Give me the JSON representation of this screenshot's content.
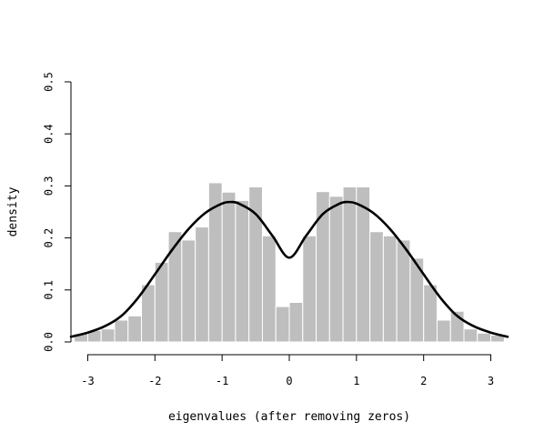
{
  "chart_data": {
    "type": "bar",
    "subtype": "histogram-with-density",
    "title": "",
    "xlabel": "eigenvalues (after removing zeros)",
    "ylabel": "density",
    "xlim": [
      -3.25,
      3.25
    ],
    "ylim": [
      0,
      0.5
    ],
    "x_ticks": [
      -3,
      -2,
      -1,
      0,
      1,
      2,
      3
    ],
    "x_tick_labels": [
      "-3",
      "-2",
      "-1",
      "0",
      "1",
      "2",
      "3"
    ],
    "y_ticks": [
      0,
      0.1,
      0.2,
      0.3,
      0.4,
      0.5
    ],
    "y_tick_labels": [
      "0.0",
      "0.1",
      "0.2",
      "0.3",
      "0.4",
      "0.5"
    ],
    "grid": false,
    "bar_color": "#bebebe",
    "curve_color": "#000000",
    "bins": [
      {
        "x0": -3.2,
        "x1": -3.0,
        "density": 0.016
      },
      {
        "x0": -3.0,
        "x1": -2.8,
        "density": 0.022
      },
      {
        "x0": -2.8,
        "x1": -2.6,
        "density": 0.025
      },
      {
        "x0": -2.6,
        "x1": -2.4,
        "density": 0.042
      },
      {
        "x0": -2.4,
        "x1": -2.2,
        "density": 0.05
      },
      {
        "x0": -2.2,
        "x1": -2.0,
        "density": 0.11
      },
      {
        "x0": -2.0,
        "x1": -1.8,
        "density": 0.153
      },
      {
        "x0": -1.8,
        "x1": -1.6,
        "density": 0.212
      },
      {
        "x0": -1.6,
        "x1": -1.4,
        "density": 0.196
      },
      {
        "x0": -1.4,
        "x1": -1.2,
        "density": 0.221
      },
      {
        "x0": -1.2,
        "x1": -1.0,
        "density": 0.306
      },
      {
        "x0": -1.0,
        "x1": -0.8,
        "density": 0.288
      },
      {
        "x0": -0.8,
        "x1": -0.6,
        "density": 0.272
      },
      {
        "x0": -0.6,
        "x1": -0.4,
        "density": 0.298
      },
      {
        "x0": -0.4,
        "x1": -0.2,
        "density": 0.204
      },
      {
        "x0": -0.2,
        "x1": 0.0,
        "density": 0.068
      },
      {
        "x0": 0.0,
        "x1": 0.2,
        "density": 0.076
      },
      {
        "x0": 0.2,
        "x1": 0.4,
        "density": 0.204
      },
      {
        "x0": 0.4,
        "x1": 0.6,
        "density": 0.289
      },
      {
        "x0": 0.6,
        "x1": 0.8,
        "density": 0.28
      },
      {
        "x0": 0.8,
        "x1": 1.0,
        "density": 0.298
      },
      {
        "x0": 1.0,
        "x1": 1.2,
        "density": 0.298
      },
      {
        "x0": 1.2,
        "x1": 1.4,
        "density": 0.212
      },
      {
        "x0": 1.4,
        "x1": 1.6,
        "density": 0.204
      },
      {
        "x0": 1.6,
        "x1": 1.8,
        "density": 0.196
      },
      {
        "x0": 1.8,
        "x1": 2.0,
        "density": 0.161
      },
      {
        "x0": 2.0,
        "x1": 2.2,
        "density": 0.11
      },
      {
        "x0": 2.2,
        "x1": 2.4,
        "density": 0.042
      },
      {
        "x0": 2.4,
        "x1": 2.6,
        "density": 0.059
      },
      {
        "x0": 2.6,
        "x1": 2.8,
        "density": 0.025
      },
      {
        "x0": 2.8,
        "x1": 3.0,
        "density": 0.017
      },
      {
        "x0": 3.0,
        "x1": 3.2,
        "density": 0.013
      }
    ],
    "density_curve": {
      "x": [
        -3.25,
        -3.0,
        -2.75,
        -2.5,
        -2.25,
        -2.0,
        -1.75,
        -1.5,
        -1.25,
        -1.0,
        -0.875,
        -0.75,
        -0.5,
        -0.25,
        0.0,
        0.25,
        0.5,
        0.75,
        0.875,
        1.0,
        1.25,
        1.5,
        1.75,
        2.0,
        2.25,
        2.5,
        2.75,
        3.0,
        3.25
      ],
      "y": [
        0.01,
        0.018,
        0.03,
        0.05,
        0.085,
        0.13,
        0.176,
        0.217,
        0.248,
        0.266,
        0.269,
        0.266,
        0.246,
        0.204,
        0.162,
        0.204,
        0.246,
        0.266,
        0.269,
        0.266,
        0.248,
        0.217,
        0.176,
        0.13,
        0.085,
        0.05,
        0.03,
        0.018,
        0.01
      ]
    }
  }
}
